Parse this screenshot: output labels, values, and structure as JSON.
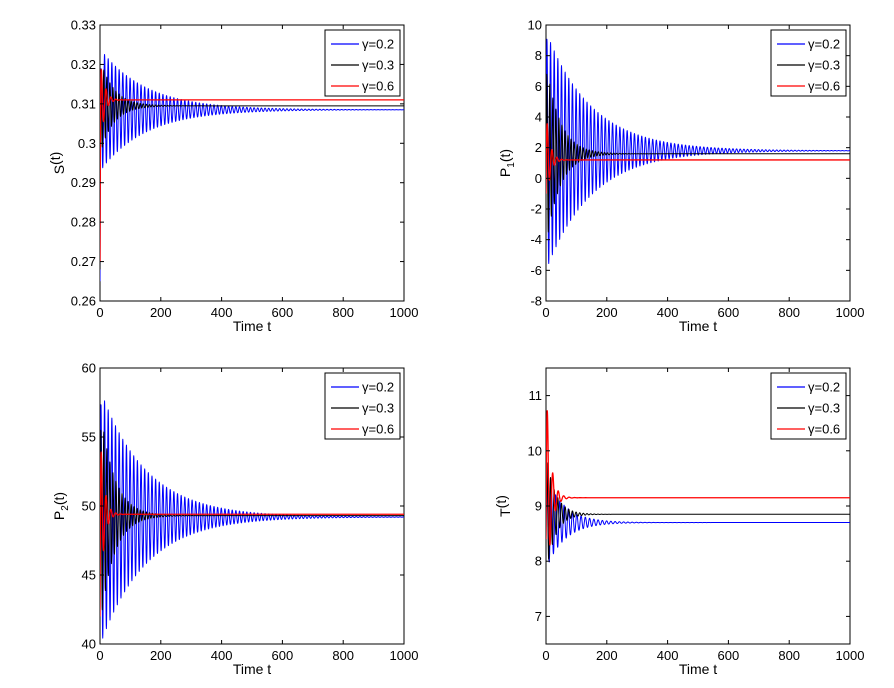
{
  "figure": {
    "colors": {
      "blue": "#0000ff",
      "black": "#000000",
      "red": "#ff0000"
    }
  },
  "chart_data": [
    {
      "id": "s",
      "type": "line",
      "xlabel": "Time t",
      "ylabel": "S(t)",
      "ylabel_main": "S",
      "ylabel_sub": "",
      "ylabel_tail": "(t)",
      "xlim": [
        0,
        1000
      ],
      "ylim": [
        0.26,
        0.33
      ],
      "xticks": [
        0,
        200,
        400,
        600,
        800,
        1000
      ],
      "xtick_labels": [
        "0",
        "200",
        "400",
        "600",
        "800",
        "1000"
      ],
      "yticks": [
        0.26,
        0.27,
        0.28,
        0.29,
        0.3,
        0.31,
        0.32,
        0.33
      ],
      "ytick_labels": [
        "0.26",
        "0.27",
        "0.28",
        "0.29",
        "0.3",
        "0.31",
        "0.32",
        "0.33"
      ],
      "grid": false,
      "legend_position": "top-right",
      "series": [
        {
          "name": "γ=0.2",
          "color": "#0000ff",
          "start": 0.265,
          "equilibrium": 0.3085,
          "amplitude": 0.0155,
          "period": 12,
          "decay": 150
        },
        {
          "name": "γ=0.3",
          "color": "#000000",
          "start": 0.268,
          "equilibrium": 0.3095,
          "amplitude": 0.012,
          "period": 10,
          "decay": 45
        },
        {
          "name": "γ=0.6",
          "color": "#ff0000",
          "start": 0.27,
          "equilibrium": 0.311,
          "amplitude": 0.0145,
          "period": 16,
          "decay": 12
        }
      ]
    },
    {
      "id": "p1",
      "type": "line",
      "xlabel": "Time t",
      "ylabel": "P1(t)",
      "ylabel_main": "P",
      "ylabel_sub": "1",
      "ylabel_tail": "(t)",
      "xlim": [
        0,
        1000
      ],
      "ylim": [
        -8,
        10
      ],
      "xticks": [
        0,
        200,
        400,
        600,
        800,
        1000
      ],
      "xtick_labels": [
        "0",
        "200",
        "400",
        "600",
        "800",
        "1000"
      ],
      "yticks": [
        -8,
        -6,
        -4,
        -2,
        0,
        2,
        4,
        6,
        8,
        10
      ],
      "ytick_labels": [
        "-8",
        "-6",
        "-4",
        "-2",
        "0",
        "2",
        "4",
        "6",
        "8",
        "10"
      ],
      "grid": false,
      "legend_position": "top-right",
      "series": [
        {
          "name": "γ=0.2",
          "color": "#0000ff",
          "start": -1,
          "equilibrium": 1.8,
          "amplitude": 7.8,
          "period": 12,
          "decay": 150
        },
        {
          "name": "γ=0.3",
          "color": "#000000",
          "start": -1,
          "equilibrium": 1.6,
          "amplitude": 6,
          "period": 10,
          "decay": 45
        },
        {
          "name": "γ=0.6",
          "color": "#ff0000",
          "start": -1,
          "equilibrium": 1.2,
          "amplitude": 3.5,
          "period": 16,
          "decay": 12
        }
      ]
    },
    {
      "id": "p2",
      "type": "line",
      "xlabel": "Time t",
      "ylabel": "P2(t)",
      "ylabel_main": "P",
      "ylabel_sub": "2",
      "ylabel_tail": "(t)",
      "xlim": [
        0,
        1000
      ],
      "ylim": [
        40,
        60
      ],
      "xticks": [
        0,
        200,
        400,
        600,
        800,
        1000
      ],
      "xtick_labels": [
        "0",
        "200",
        "400",
        "600",
        "800",
        "1000"
      ],
      "yticks": [
        40,
        45,
        50,
        55,
        60
      ],
      "ytick_labels": [
        "40",
        "45",
        "50",
        "55",
        "60"
      ],
      "grid": false,
      "legend_position": "top-right",
      "series": [
        {
          "name": "γ=0.2",
          "color": "#0000ff",
          "start": 42,
          "equilibrium": 49.2,
          "amplitude": 9.3,
          "period": 12,
          "decay": 150
        },
        {
          "name": "γ=0.3",
          "color": "#000000",
          "start": 42,
          "equilibrium": 49.3,
          "amplitude": 8,
          "period": 10,
          "decay": 45
        },
        {
          "name": "γ=0.6",
          "color": "#ff0000",
          "start": 42,
          "equilibrium": 49.4,
          "amplitude": 7,
          "period": 16,
          "decay": 12
        }
      ]
    },
    {
      "id": "t",
      "type": "line",
      "xlabel": "Time t",
      "ylabel": "T(t)",
      "ylabel_main": "T",
      "ylabel_sub": "",
      "ylabel_tail": "(t)",
      "xlim": [
        0,
        1000
      ],
      "ylim": [
        6.5,
        11.5
      ],
      "xticks": [
        0,
        200,
        400,
        600,
        800,
        1000
      ],
      "xtick_labels": [
        "0",
        "200",
        "400",
        "600",
        "800",
        "1000"
      ],
      "yticks": [
        7,
        8,
        9,
        10,
        11
      ],
      "ytick_labels": [
        "7",
        "8",
        "9",
        "10",
        "11"
      ],
      "grid": false,
      "legend_position": "top-right",
      "series": [
        {
          "name": "γ=0.2",
          "color": "#0000ff",
          "start": 8.4,
          "equilibrium": 8.7,
          "amplitude": 0.85,
          "period": 14,
          "decay": 60
        },
        {
          "name": "γ=0.3",
          "color": "#000000",
          "start": 8.4,
          "equilibrium": 8.85,
          "amplitude": 1.1,
          "period": 12,
          "decay": 30
        },
        {
          "name": "γ=0.6",
          "color": "#ff0000",
          "start": 8.4,
          "equilibrium": 9.15,
          "amplitude": 2.2,
          "period": 18,
          "decay": 14
        }
      ]
    }
  ]
}
